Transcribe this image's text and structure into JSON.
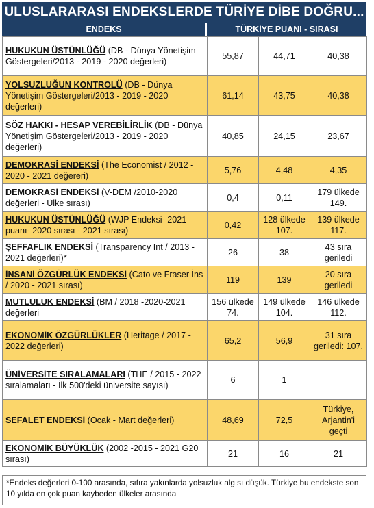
{
  "title": "ULUSLARARASI ENDEKSLERDE TÜRİYE DİBE DOĞRU...",
  "headers": {
    "index": "ENDEKS",
    "score": "TÜRKİYE PUANI - SIRASI"
  },
  "colors": {
    "header_bg": "#1f3f66",
    "highlight_row": "#fbd66b"
  },
  "rows": [
    {
      "name": "HUKUKUN ÜSTÜNLÜĞÜ",
      "detail": " (DB - Dünya Yönetişim Gösterge­leri/2013 - 2019 - 2020 değerleri)",
      "v1": "55,87",
      "v2": "44,71",
      "v3": "40,38",
      "h": 57,
      "bg": "w"
    },
    {
      "name": "YOLSUZLUĞUN KONTROLÜ",
      "detail": "  (DB - Dünya Yönetişim Göstergeleri/2013 - 2019 - 2020 değerleri)",
      "v1": "61,14",
      "v2": "43,75",
      "v3": "40,38",
      "h": 58,
      "bg": "y"
    },
    {
      "name": "SÖZ HAKKI - HESAP VEREBİLİRLİK",
      "detail": "  (DB - Dünya Yönetişim Göstergeleri/2013 - 2019 - 2020 değerleri)",
      "v1": "40,85",
      "v2": "24,15",
      "v3": "23,67",
      "h": 60,
      "bg": "w"
    },
    {
      "name": "DEMOKRASİ ENDEKSİ",
      "detail": " (The Economist / 2012 - 2020 - 2021 değereri)",
      "v1": "5,76",
      "v2": "4,48",
      "v3": "4,35",
      "h": 40,
      "bg": "y"
    },
    {
      "name": "DEMOKRASİ ENDEKSİ",
      "detail": " (V-DEM /2010-2020 değerleri - Ülke sırası)",
      "v1": "0,4",
      "v2": "0,11",
      "v3": "179 ülkede 149.",
      "h": 40,
      "bg": "w"
    },
    {
      "name": "HUKUKUN ÜSTÜNLÜĞÜ",
      "detail": " (WJP Endeksi- 2021 puanı- 2020 sırası - 2021 sırası)",
      "v1": "0,42",
      "v2": "128 ülkede 107.",
      "v3": "139 ülkede 117.",
      "h": 40,
      "bg": "y"
    },
    {
      "name": "ŞEFFAFLIK ENDEKSİ",
      "detail": " (Transparency Int / 2013 - 2021 değerleri)*",
      "v1": "26",
      "v2": "38",
      "v3": "43 sıra geriledi",
      "h": 40,
      "bg": "w"
    },
    {
      "name": "İNSANİ ÖZGÜRLÜK ENDEKSİ",
      "detail": " (Cato ve Fraser İns / 2020 - 2021 sırası)",
      "v1": "119",
      "v2": "139",
      "v3": "20 sıra geriledi",
      "h": 40,
      "bg": "y"
    },
    {
      "name": "MUTLULUK ENDEKSİ",
      "detail": " (BM / 2018 -2020-2021 değerleri",
      "v1": "156 ülkede 74.",
      "v2": "149 ülkede 104.",
      "v3": "146 ülkede 112.",
      "h": 40,
      "bg": "w"
    },
    {
      "name": "EKONOMİK ÖZGÜRLÜKLER",
      "detail": " (Heritage / 2017 - 2022 değerleri)",
      "v1": "65,2",
      "v2": "56,9",
      "v3": "31 sıra geriledi: 107.",
      "h": 58,
      "bg": "y"
    },
    {
      "name": "ÜNİVERSİTE SIRALAMALARI",
      "detail": " (THE / 2015 - 2022 sıralamaları - İlk 500'deki üniversite sayısı)",
      "v1": "6",
      "v2": "1",
      "v3": "",
      "h": 57,
      "bg": "w"
    },
    {
      "name": "SEFALET ENDEKSİ",
      "detail": " (Ocak - Mart değerleri)",
      "v1": "48,69",
      "v2": "72,5",
      "v3": "Türkiye, Arjantin'i geçti",
      "h": 60,
      "bg": "y"
    },
    {
      "name": "EKONOMİK BÜYÜKLÜK",
      "detail": " (2002 -2015 - 2021 G20 sırası)",
      "v1": "21",
      "v2": "16",
      "v3": "21",
      "h": 38,
      "bg": "w"
    }
  ],
  "footnote": "*Endeks değerleri 0-100 arasında, sıfıra yakınlarda yolsuzluk algısı düşük. Türkiye bu endekste son 10 yılda en çok puan kaybeden ülkeler arasında"
}
